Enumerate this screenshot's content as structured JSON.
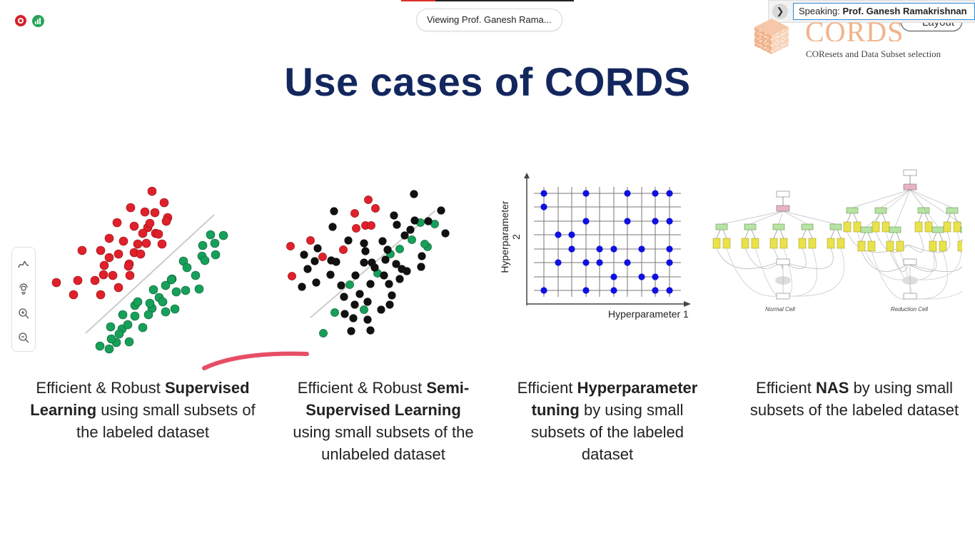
{
  "meeting": {
    "viewing_text": "Viewing Prof. Ganesh Rama...",
    "speaking_label": "Speaking:",
    "speaking_name": "Prof. Ganesh Ramakrishnan",
    "layout_label": "Layout",
    "icons": [
      "record-icon",
      "signal-icon",
      "chevron-right-icon"
    ]
  },
  "logo": {
    "word": "CORDS",
    "tagline": "COResets and Data Subset selection"
  },
  "slide": {
    "title": "Use cases of CORDS",
    "colors": {
      "title": "#13275e",
      "red_point": "#e0202a",
      "green_point": "#16a05a",
      "black_point": "#111111",
      "blue_point": "#1010e0"
    },
    "captions": [
      {
        "pre": "Efficient & Robust ",
        "bold": "Supervised Learning",
        "post": " using small subsets of the labeled dataset"
      },
      {
        "pre": "Efficient & Robust ",
        "bold": "Semi-Supervised Learning",
        "post": " using small subsets of the unlabeled dataset"
      },
      {
        "pre": "Efficient ",
        "bold": "Hyperparameter tuning",
        "post": " by using small subsets of the labeled dataset"
      },
      {
        "pre": "Efficient ",
        "bold": "NAS",
        "post": " by using small subsets of the labeled dataset"
      }
    ],
    "hyperparam_plot": {
      "xlabel": "Hyperparameter 1",
      "ylabel": "Hyperparameter 2"
    },
    "nas": {
      "normal_label": "Normal Cell",
      "reduction_label": "Reduction Cell"
    }
  },
  "toolbar": {
    "icons": [
      "pen-icon",
      "spotlight-icon",
      "zoom-in-icon",
      "zoom-out-icon"
    ]
  }
}
